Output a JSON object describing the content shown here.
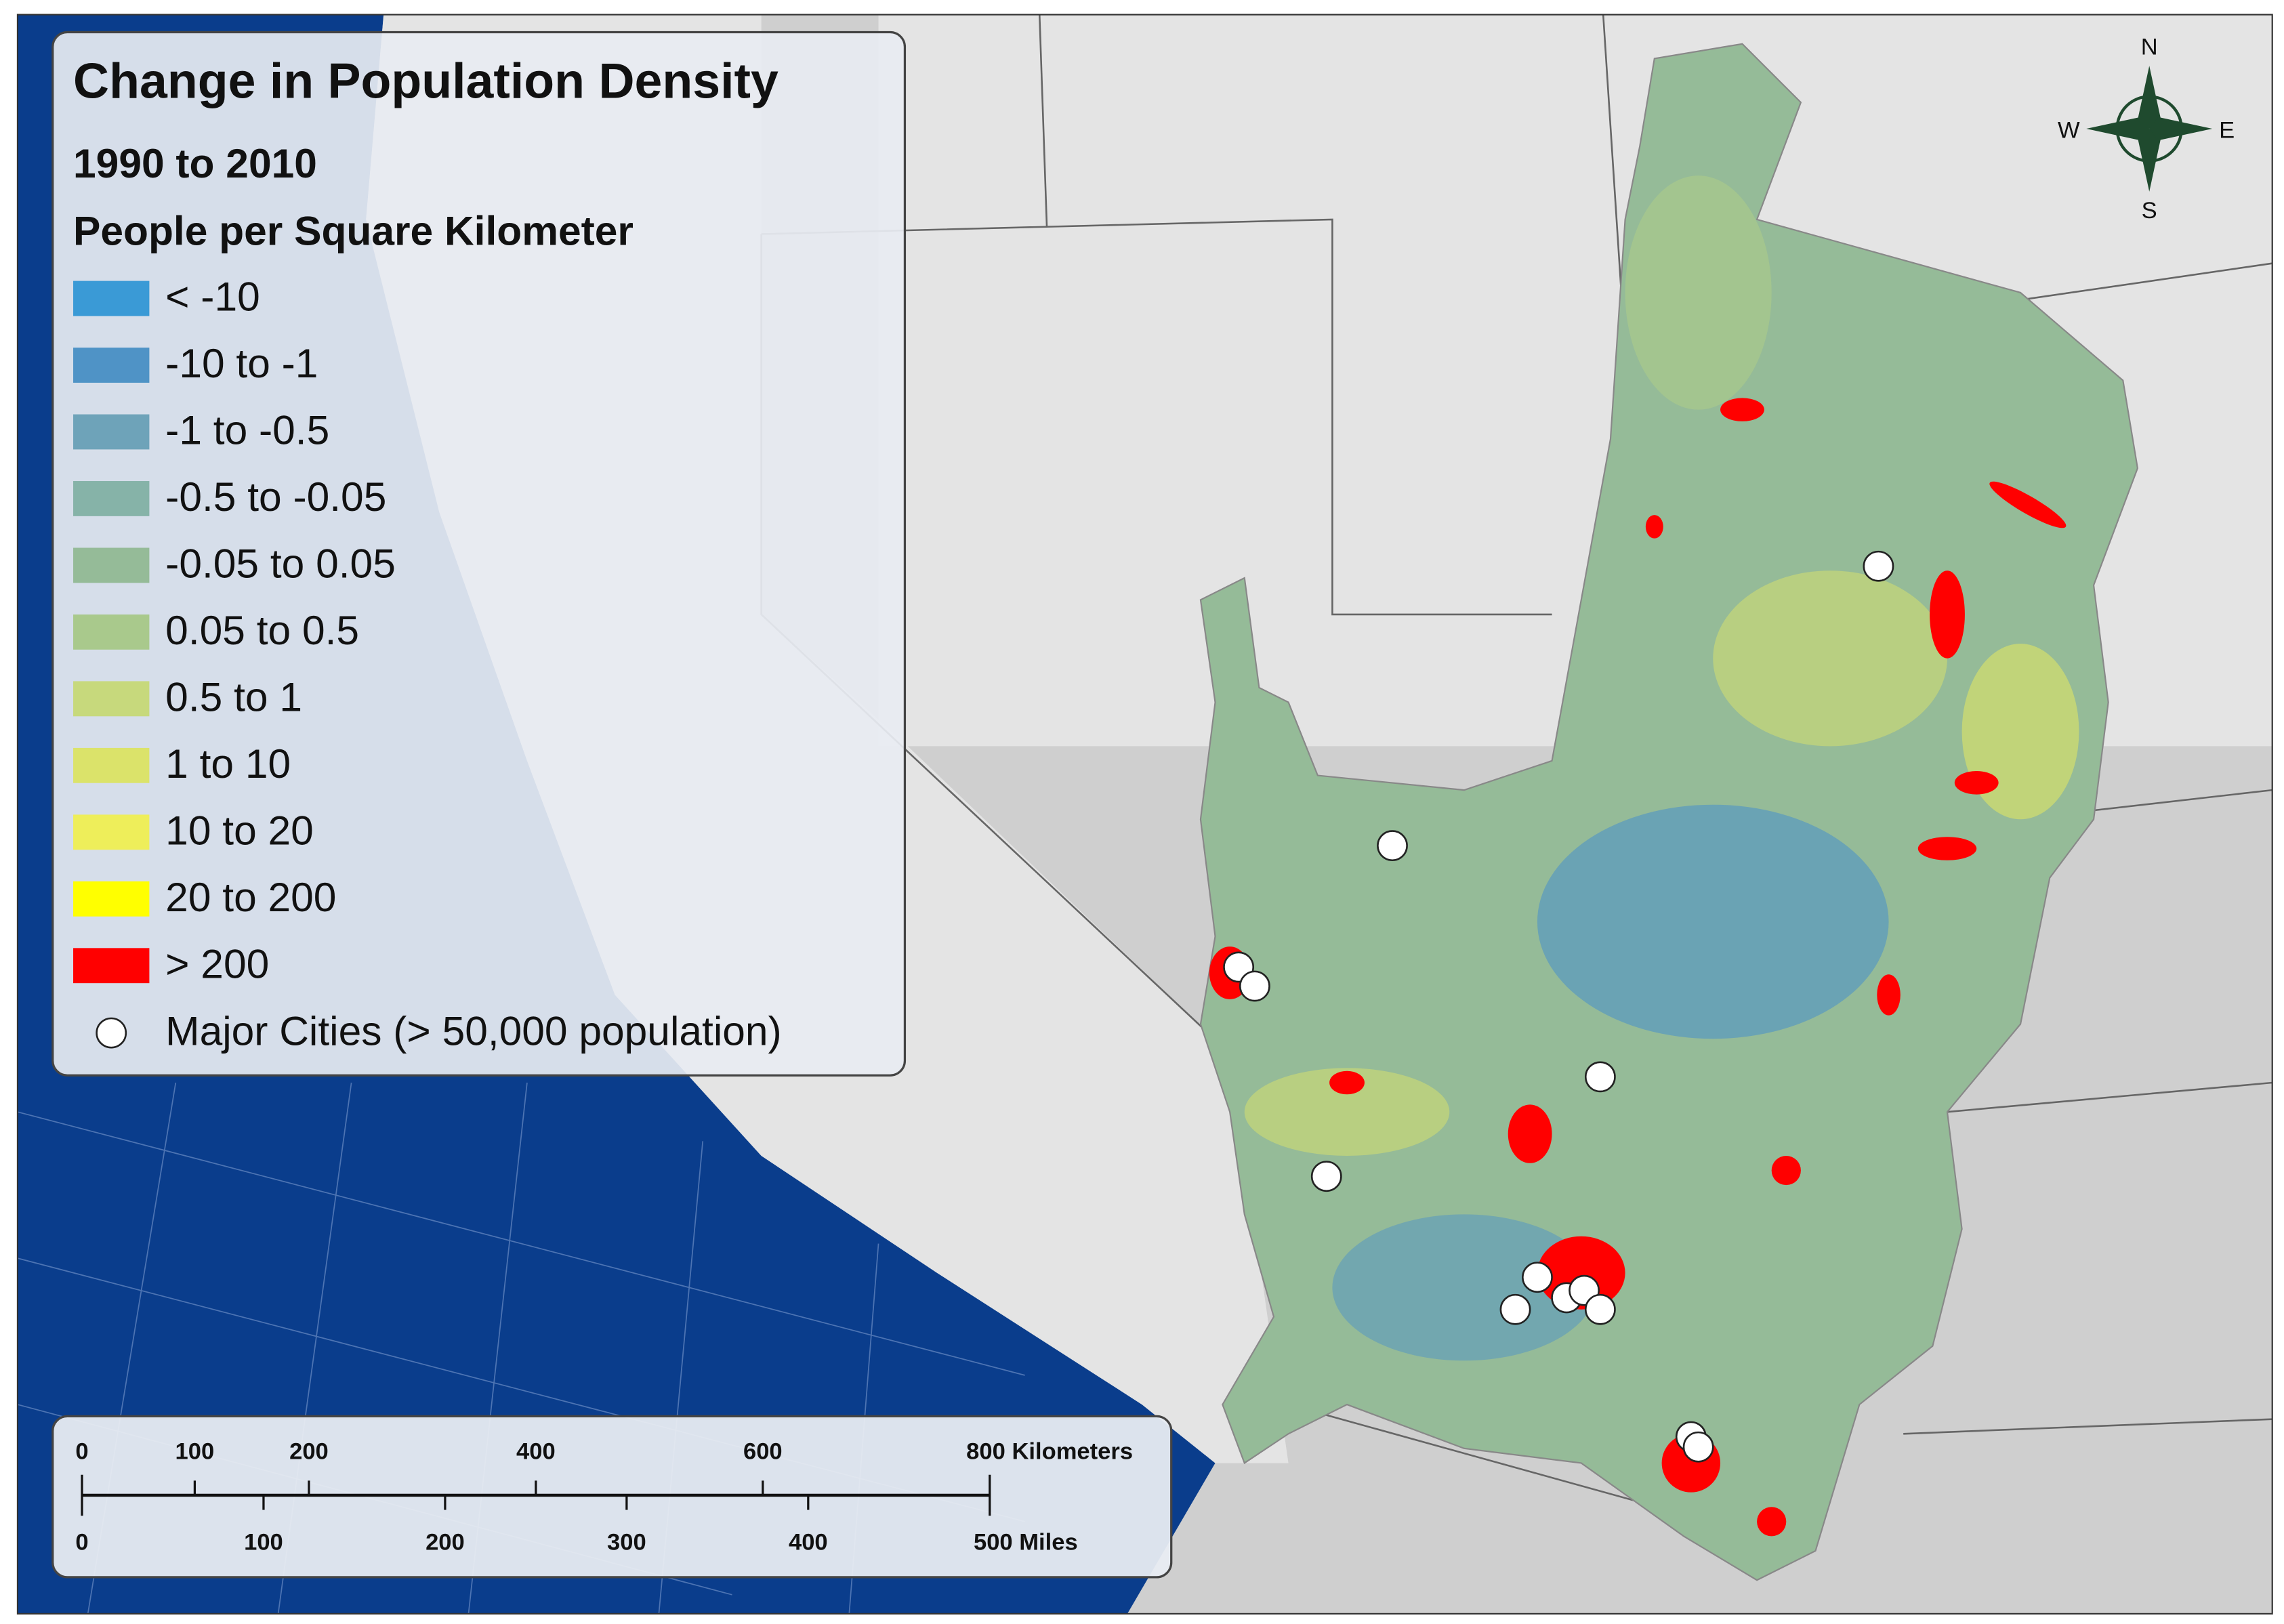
{
  "legend": {
    "title": "Change in Population Density",
    "subtitle": "1990 to 2010",
    "unit": "People per Square Kilometer",
    "items": [
      {
        "label": "< -10",
        "color": "#3a9ad6"
      },
      {
        "label": "-10 to -1",
        "color": "#4f93c6"
      },
      {
        "label": "-1 to -0.5",
        "color": "#6ea3b9"
      },
      {
        "label": "-0.5 to -0.05",
        "color": "#86b3a8"
      },
      {
        "label": "-0.05 to 0.05",
        "color": "#95bb98"
      },
      {
        "label": "0.05 to 0.5",
        "color": "#a9c98c"
      },
      {
        "label": "0.5 to 1",
        "color": "#c7d97c"
      },
      {
        "label": "1 to 10",
        "color": "#dbe36a"
      },
      {
        "label": "10 to 20",
        "color": "#eeee5a"
      },
      {
        "label": "20 to 200",
        "color": "#ffff00"
      },
      {
        "label": "> 200",
        "color": "#ff0000"
      }
    ],
    "cities": "Major Cities (> 50,000 population)"
  },
  "scale_bar": {
    "kilometers": [
      "0",
      "100",
      "200",
      "400",
      "600",
      "800 Kilometers"
    ],
    "miles": [
      "0",
      "100",
      "200",
      "300",
      "400",
      "500 Miles"
    ]
  },
  "compass": {
    "n": "N",
    "s": "S",
    "e": "E",
    "w": "W"
  }
}
